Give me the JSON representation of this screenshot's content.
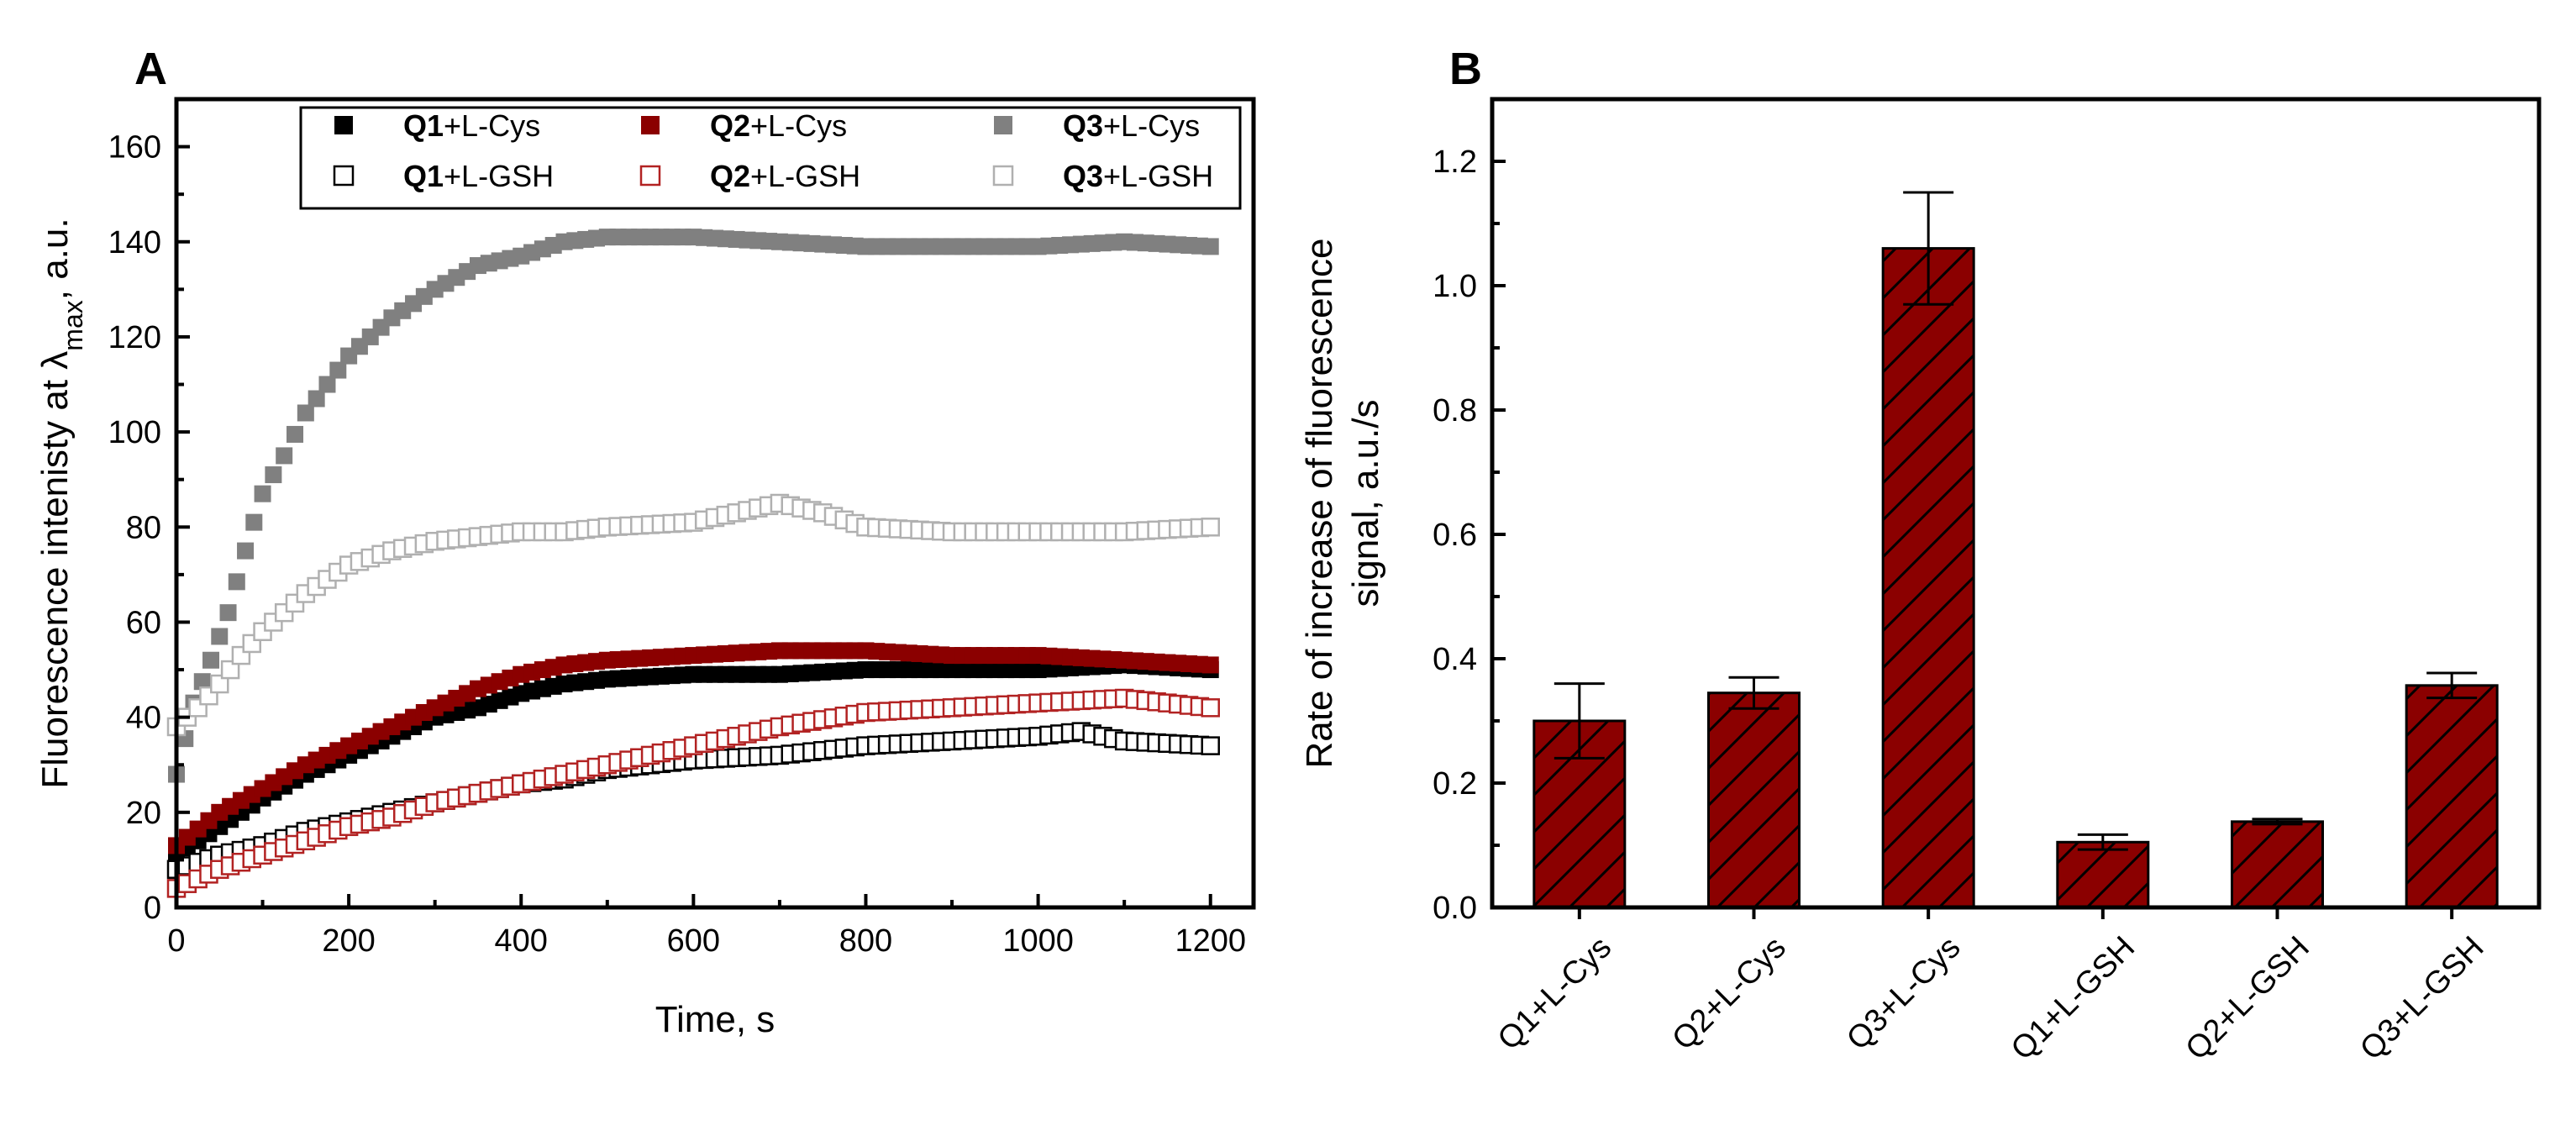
{
  "chart_data": [
    {
      "panel": "A",
      "type": "scatter",
      "xlabel": "Time, s",
      "ylabel_parts": [
        "Fluorescence intenisty at ",
        "λ",
        "max",
        ", a.u."
      ],
      "xlim": [
        0,
        1250
      ],
      "ylim": [
        0,
        170
      ],
      "xticks": [
        0,
        200,
        400,
        600,
        800,
        1000,
        1200
      ],
      "yticks": [
        0,
        20,
        40,
        60,
        80,
        100,
        120,
        140,
        160
      ],
      "legend_position": "top-right",
      "series": [
        {
          "name": "Q1+L-Cys",
          "name_bold": "Q1",
          "name_rest": "+L-Cys",
          "marker": "filled-square",
          "color": "#000000",
          "x": [
            0,
            50,
            100,
            150,
            200,
            250,
            300,
            350,
            400,
            450,
            500,
            600,
            700,
            800,
            900,
            1000,
            1100,
            1200
          ],
          "y": [
            11,
            17,
            23,
            28,
            32,
            36,
            40,
            42,
            45,
            47,
            48,
            49,
            49,
            50,
            50,
            50,
            51,
            50
          ]
        },
        {
          "name": "Q2+L-Cys",
          "name_bold": "Q2",
          "name_rest": "+L-Cys",
          "marker": "filled-square",
          "color": "#8b0000",
          "x": [
            0,
            50,
            100,
            150,
            200,
            250,
            300,
            350,
            400,
            450,
            500,
            600,
            700,
            800,
            900,
            1000,
            1100,
            1200
          ],
          "y": [
            13,
            20,
            25,
            30,
            34,
            38,
            42,
            46,
            49,
            51,
            52,
            53,
            54,
            54,
            53,
            53,
            52,
            51
          ]
        },
        {
          "name": "Q3+L-Cys",
          "name_bold": "Q3",
          "name_rest": "+L-Cys",
          "marker": "filled-square",
          "color": "#808080",
          "x": [
            0,
            20,
            40,
            60,
            80,
            100,
            125,
            150,
            175,
            200,
            250,
            300,
            350,
            400,
            450,
            500,
            600,
            700,
            800,
            900,
            1000,
            1100,
            1200
          ],
          "y": [
            28,
            43,
            52,
            62,
            75,
            87,
            95,
            104,
            110,
            116,
            124,
            130,
            135,
            137,
            140,
            141,
            141,
            140,
            139,
            139,
            139,
            140,
            139
          ]
        },
        {
          "name": "Q1+L-GSH",
          "name_bold": "Q1",
          "name_rest": "+L-GSH",
          "marker": "open-square",
          "color": "#000000",
          "x": [
            0,
            50,
            100,
            150,
            200,
            250,
            300,
            350,
            400,
            450,
            500,
            600,
            700,
            800,
            900,
            1000,
            1050,
            1100,
            1200
          ],
          "y": [
            8,
            11,
            13,
            16,
            18,
            20,
            22,
            24,
            26,
            27,
            29,
            31,
            32,
            34,
            35,
            36,
            37,
            35,
            34
          ]
        },
        {
          "name": "Q2+L-GSH",
          "name_bold": "Q2",
          "name_rest": "+L-GSH",
          "marker": "open-square",
          "color": "#b22222",
          "x": [
            0,
            50,
            100,
            150,
            200,
            250,
            300,
            350,
            400,
            450,
            500,
            600,
            700,
            800,
            900,
            1000,
            1100,
            1200
          ],
          "y": [
            4,
            8,
            11,
            14,
            17,
            19,
            22,
            24,
            26,
            28,
            30,
            34,
            38,
            41,
            42,
            43,
            44,
            42
          ]
        },
        {
          "name": "Q3+L-GSH",
          "name_bold": "Q3",
          "name_rest": "+L-GSH",
          "marker": "open-square",
          "color": "#b0b0b0",
          "x": [
            0,
            25,
            50,
            75,
            100,
            125,
            150,
            200,
            250,
            300,
            350,
            400,
            450,
            500,
            600,
            650,
            700,
            750,
            800,
            900,
            1000,
            1100,
            1200
          ],
          "y": [
            38,
            42,
            47,
            53,
            58,
            62,
            66,
            72,
            75,
            77,
            78,
            79,
            79,
            80,
            81,
            83,
            85,
            83,
            80,
            79,
            79,
            79,
            80
          ]
        }
      ]
    },
    {
      "panel": "B",
      "type": "bar",
      "ylabel_lines": [
        "Rate of increase of fluorescence",
        "signal, a.u./s"
      ],
      "ylim": [
        0,
        1.3
      ],
      "yticks": [
        "0.0",
        "0.2",
        "0.4",
        "0.6",
        "0.8",
        "1.0",
        "1.2"
      ],
      "categories": [
        "Q1+L-Cys",
        "Q2+L-Cys",
        "Q3+L-Cys",
        "Q1+L-GSH",
        "Q2+L-GSH",
        "Q3+L-GSH"
      ],
      "values": [
        0.3,
        0.345,
        1.06,
        0.105,
        0.138,
        0.357
      ],
      "errors": [
        0.06,
        0.025,
        0.09,
        0.012,
        0.004,
        0.02
      ],
      "bar_color": "#8b0000",
      "bar_pattern": "diagonal hatch"
    }
  ]
}
